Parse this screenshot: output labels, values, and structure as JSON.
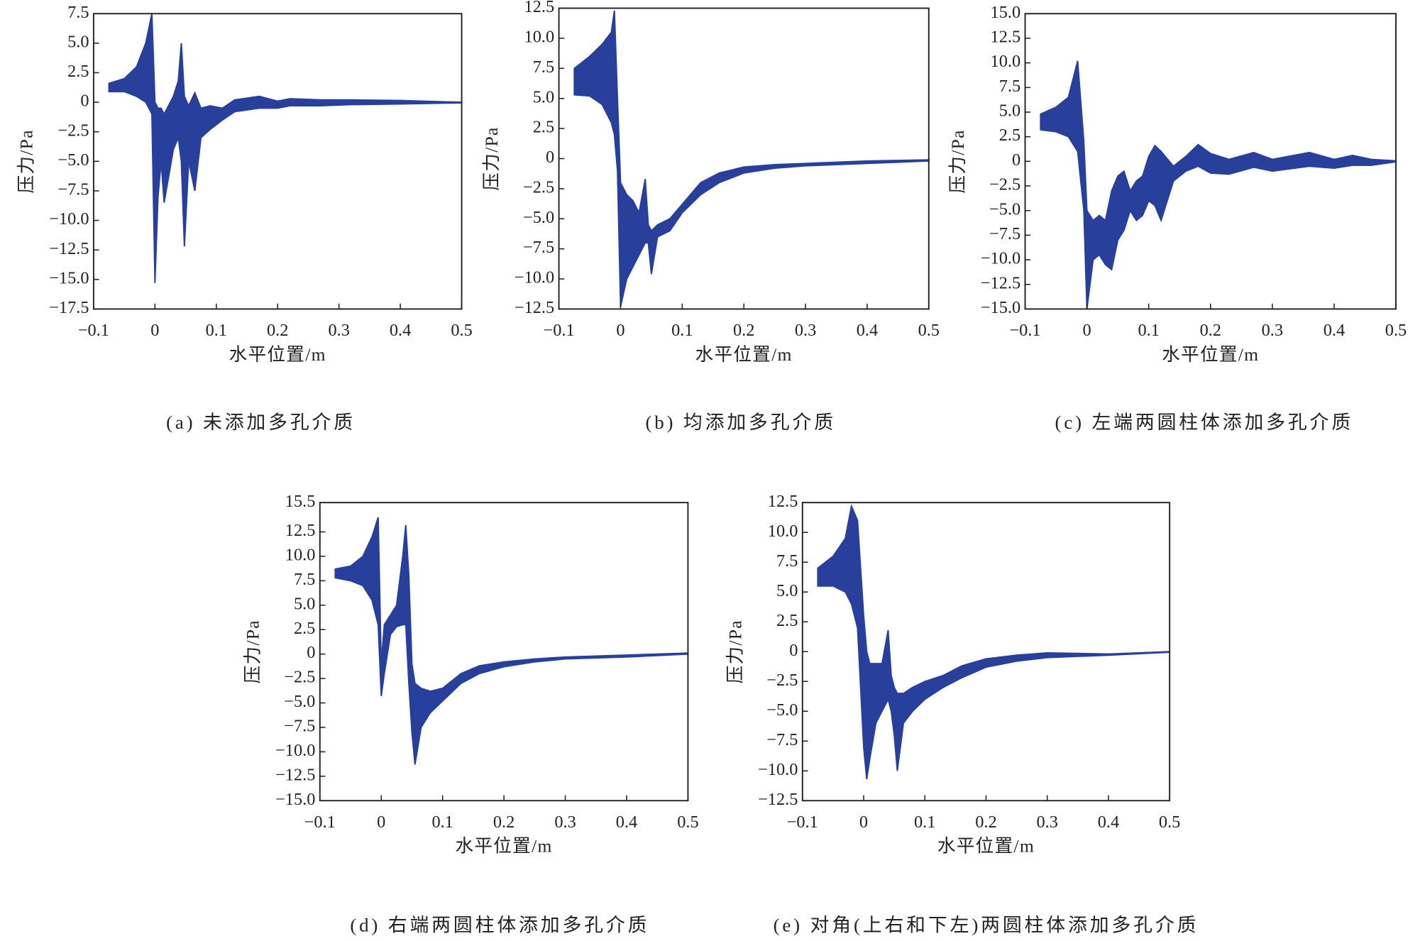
{
  "chart_data": [
    {
      "type": "band",
      "color": "#283f9c",
      "caption": "(a) 未添加多孔介质",
      "xlabel": "水平位置/m",
      "ylabel": "压力/Pa",
      "xlim": [
        -0.1,
        0.5
      ],
      "xticks": [
        {
          "value": -0.1,
          "label": "−0.1"
        },
        0,
        0.1,
        0.2,
        0.3,
        0.4,
        0.5
      ],
      "ylim": [
        -17.5,
        7.5
      ],
      "yticks": [
        7.5,
        {
          "value": 5,
          "label": "5.0"
        },
        2.5,
        0,
        {
          "value": -2.5,
          "label": "−2.5"
        },
        {
          "value": -5,
          "label": "−5.0"
        },
        {
          "value": -7.5,
          "label": "−7.5"
        },
        {
          "value": -10,
          "label": "−10.0"
        },
        {
          "value": -12.5,
          "label": "−12.5"
        },
        {
          "value": -15,
          "label": "−15.0"
        },
        {
          "value": -17.5,
          "label": "−17.5"
        }
      ],
      "x": [
        -0.075,
        -0.05,
        -0.03,
        -0.015,
        -0.005,
        0,
        0.005,
        0.01,
        0.015,
        0.02,
        0.03,
        0.038,
        0.043,
        0.048,
        0.055,
        0.065,
        0.075,
        0.09,
        0.11,
        0.13,
        0.17,
        0.2,
        0.22,
        0.27,
        0.32,
        0.4,
        0.5
      ],
      "upper": [
        1.6,
        2.0,
        3,
        5,
        7.5,
        0,
        -0.5,
        -0.5,
        -1,
        -0.5,
        0.5,
        1.8,
        5,
        0.5,
        -0.3,
        0.8,
        -0.5,
        -0.3,
        -0.5,
        0.2,
        0.5,
        0.1,
        0.3,
        0.2,
        0.2,
        0.15,
        0
      ],
      "lower": [
        0.9,
        0.9,
        0.5,
        0,
        -1,
        -15.3,
        -8,
        -5,
        -8.5,
        -7,
        -4,
        -3,
        -5,
        -12.2,
        -5,
        -7.5,
        -3,
        -2.3,
        -1.5,
        -0.8,
        -0.5,
        -0.5,
        -0.3,
        -0.3,
        -0.2,
        -0.15,
        -0.05
      ]
    },
    {
      "type": "band",
      "color": "#283f9c",
      "caption": "(b) 均添加多孔介质",
      "xlabel": "水平位置/m",
      "ylabel": "压力/Pa",
      "xlim": [
        -0.1,
        0.5
      ],
      "xticks": [
        {
          "value": -0.1,
          "label": "−0.1"
        },
        0,
        0.1,
        0.2,
        0.3,
        0.4,
        0.5
      ],
      "ylim": [
        -12.5,
        12.5
      ],
      "yticks": [
        12.5,
        {
          "value": 10,
          "label": "10.0"
        },
        7.5,
        {
          "value": 5,
          "label": "5.0"
        },
        2.5,
        0,
        {
          "value": -2.5,
          "label": "−2.5"
        },
        {
          "value": -5,
          "label": "−5.0"
        },
        {
          "value": -7.5,
          "label": "−7.5"
        },
        {
          "value": -10,
          "label": "−10.0"
        },
        {
          "value": -12.5,
          "label": "−12.5"
        }
      ],
      "x": [
        -0.075,
        -0.05,
        -0.03,
        -0.015,
        -0.01,
        -0.005,
        0,
        0.01,
        0.02,
        0.03,
        0.04,
        0.045,
        0.05,
        0.06,
        0.08,
        0.1,
        0.13,
        0.16,
        0.2,
        0.25,
        0.3,
        0.4,
        0.5
      ],
      "upper": [
        7.5,
        8.5,
        9.5,
        10.5,
        12.3,
        5,
        -2,
        -3,
        -3.5,
        -4.5,
        -1.7,
        -5.5,
        -6,
        -5.5,
        -5,
        -3.8,
        -2,
        -1.2,
        -0.7,
        -0.5,
        -0.4,
        -0.2,
        -0.1
      ],
      "lower": [
        5.3,
        5.2,
        4.5,
        3,
        2,
        -1,
        -12.3,
        -10,
        -9,
        -8,
        -7,
        -7,
        -9.6,
        -6.5,
        -6,
        -4.5,
        -3,
        -2,
        -1.2,
        -0.8,
        -0.6,
        -0.4,
        -0.2
      ]
    },
    {
      "type": "band",
      "color": "#283f9c",
      "caption": "(c) 左端两圆柱体添加多孔介质",
      "xlabel": "水平位置/m",
      "ylabel": "压力/Pa",
      "xlim": [
        -0.1,
        0.5
      ],
      "xticks": [
        {
          "value": -0.1,
          "label": "−0.1"
        },
        0,
        0.1,
        0.2,
        0.3,
        0.4,
        0.5
      ],
      "ylim": [
        -15,
        15
      ],
      "yticks": [
        {
          "value": 15,
          "label": "15.0"
        },
        12.5,
        {
          "value": 10,
          "label": "10.0"
        },
        7.5,
        {
          "value": 5,
          "label": "5.0"
        },
        2.5,
        0,
        {
          "value": -2.5,
          "label": "−2.5"
        },
        {
          "value": -5,
          "label": "−5.0"
        },
        {
          "value": -7.5,
          "label": "−7.5"
        },
        {
          "value": -10,
          "label": "−10.0"
        },
        {
          "value": -12.5,
          "label": "−12.5"
        },
        {
          "value": -15,
          "label": "−15.0"
        }
      ],
      "x": [
        -0.075,
        -0.05,
        -0.03,
        -0.015,
        -0.005,
        0,
        0.01,
        0.02,
        0.03,
        0.04,
        0.05,
        0.06,
        0.07,
        0.08,
        0.09,
        0.1,
        0.11,
        0.12,
        0.14,
        0.16,
        0.18,
        0.2,
        0.23,
        0.27,
        0.3,
        0.36,
        0.4,
        0.43,
        0.46,
        0.5
      ],
      "upper": [
        4.8,
        5.5,
        6.5,
        10.2,
        2,
        -5,
        -6,
        -5.5,
        -6,
        -3,
        -1.5,
        -1,
        -3,
        -2,
        -1.5,
        0.5,
        1.6,
        1,
        -0.5,
        0.5,
        1.7,
        0.8,
        0.2,
        0.9,
        0.2,
        0.9,
        0.2,
        0.6,
        0.2,
        0.05
      ],
      "lower": [
        3.2,
        3,
        2.5,
        1,
        -5,
        -15,
        -10,
        -9.5,
        -10.5,
        -11,
        -8,
        -7,
        -5,
        -6,
        -5.5,
        -4,
        -4.5,
        -6,
        -2,
        -1,
        -0.5,
        -1.2,
        -1.3,
        -0.6,
        -1,
        -0.5,
        -0.7,
        -0.4,
        -0.4,
        -0.05
      ]
    },
    {
      "type": "band",
      "color": "#283f9c",
      "caption": "(d) 右端两圆柱体添加多孔介质",
      "xlabel": "水平位置/m",
      "ylabel": "压力/Pa",
      "xlim": [
        -0.1,
        0.5
      ],
      "xticks": [
        {
          "value": -0.1,
          "label": "−0.1"
        },
        0,
        0.1,
        0.2,
        0.3,
        0.4,
        0.5
      ],
      "ylim": [
        -15,
        15.5
      ],
      "yticks": [
        15.5,
        12.5,
        {
          "value": 10,
          "label": "10.0"
        },
        7.5,
        {
          "value": 5,
          "label": "5.0"
        },
        2.5,
        0,
        {
          "value": -2.5,
          "label": "−2.5"
        },
        {
          "value": -5,
          "label": "−5.0"
        },
        {
          "value": -7.5,
          "label": "−7.5"
        },
        {
          "value": -10,
          "label": "−10.0"
        },
        {
          "value": -12.5,
          "label": "−12.5"
        },
        {
          "value": -15,
          "label": "−15.0"
        }
      ],
      "x": [
        -0.075,
        -0.05,
        -0.03,
        -0.015,
        -0.005,
        0,
        0.005,
        0.015,
        0.025,
        0.035,
        0.04,
        0.045,
        0.05,
        0.055,
        0.065,
        0.08,
        0.1,
        0.13,
        0.16,
        0.2,
        0.25,
        0.3,
        0.4,
        0.5
      ],
      "upper": [
        8.7,
        9,
        10,
        12,
        14,
        -1,
        3,
        4,
        5,
        10,
        13.2,
        8,
        -1,
        -3,
        -3.5,
        -3.8,
        -3.5,
        -2,
        -1.2,
        -0.8,
        -0.5,
        -0.3,
        -0.1,
        0.1
      ],
      "lower": [
        7.8,
        7.5,
        7,
        5.5,
        3,
        -4.3,
        -2,
        2,
        2.8,
        3,
        3,
        -3,
        -8,
        -11.3,
        -7.5,
        -6,
        -4.8,
        -3,
        -2,
        -1.3,
        -0.8,
        -0.5,
        -0.3,
        0
      ]
    },
    {
      "type": "band",
      "color": "#283f9c",
      "caption": "(e) 对角(上右和下左)两圆柱体添加多孔介质",
      "xlabel": "水平位置/m",
      "ylabel": "压力/Pa",
      "xlim": [
        -0.1,
        0.5
      ],
      "xticks": [
        {
          "value": -0.1,
          "label": "−0.1"
        },
        0,
        0.1,
        0.2,
        0.3,
        0.4,
        0.5
      ],
      "ylim": [
        -12.5,
        12.5
      ],
      "yticks": [
        12.5,
        {
          "value": 10,
          "label": "10.0"
        },
        7.5,
        {
          "value": 5,
          "label": "5.0"
        },
        2.5,
        0,
        {
          "value": -2.5,
          "label": "−2.5"
        },
        {
          "value": -5,
          "label": "−5.0"
        },
        {
          "value": -7.5,
          "label": "−7.5"
        },
        {
          "value": -10,
          "label": "−10.0"
        },
        {
          "value": -12.5,
          "label": "−12.5"
        }
      ],
      "x": [
        -0.075,
        -0.05,
        -0.03,
        -0.02,
        -0.01,
        0,
        0.005,
        0.01,
        0.02,
        0.03,
        0.04,
        0.045,
        0.05,
        0.055,
        0.065,
        0.08,
        0.1,
        0.13,
        0.16,
        0.2,
        0.25,
        0.3,
        0.4,
        0.5
      ],
      "upper": [
        7,
        8,
        9.5,
        12.2,
        11,
        3,
        0,
        -1,
        -1,
        -1,
        1.8,
        -2,
        -3,
        -3.5,
        -3.5,
        -3,
        -2.5,
        -2,
        -1.2,
        -0.6,
        -0.3,
        -0.1,
        -0.2,
        0
      ],
      "lower": [
        5.5,
        5.5,
        5,
        4,
        2,
        -8,
        -10.7,
        -9,
        -6,
        -5,
        -4,
        -5,
        -7,
        -10,
        -6,
        -5,
        -4,
        -3,
        -2.2,
        -1.3,
        -0.8,
        -0.5,
        -0.3,
        -0.05
      ]
    }
  ]
}
